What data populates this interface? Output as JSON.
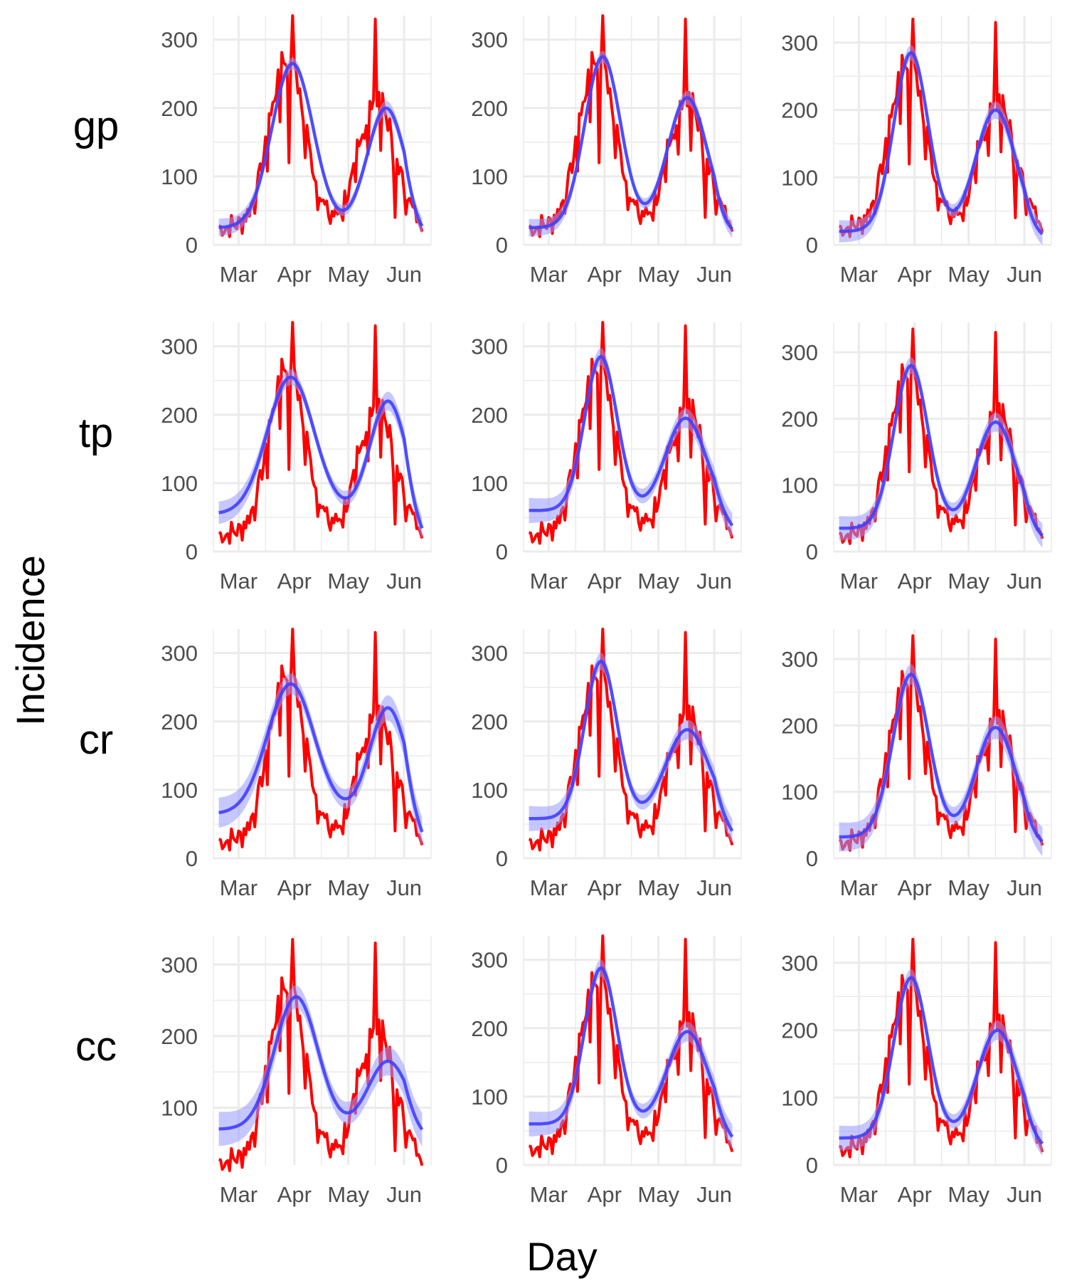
{
  "chart_data": {
    "type": "line",
    "facet_layout": {
      "rows": 4,
      "cols": 3
    },
    "xlabel": "Day",
    "ylabel": "Incidence",
    "row_labels": [
      "gp",
      "tp",
      "cr",
      "cc"
    ],
    "x_ticks": [
      "Mar",
      "Apr",
      "May",
      "Jun"
    ],
    "x_tick_days": [
      3,
      34,
      64,
      95
    ],
    "xlim": [
      -11,
      110
    ],
    "grid": true,
    "colors": {
      "observed": "#ff0000",
      "fit": "#3f3fff",
      "band": "#9999ff",
      "grid": "#ebebeb"
    },
    "observed": {
      "peak1": {
        "center": 30,
        "width": 10,
        "height": 245
      },
      "peak2": {
        "center": 80,
        "width": 10,
        "height": 185
      },
      "base": 25,
      "spikes": [
        {
          "day": 33,
          "value": 335
        },
        {
          "day": 79,
          "value": 330
        }
      ],
      "weekday_dips": [
        {
          "day": 31,
          "value": 120
        },
        {
          "day": 90,
          "value": 40
        }
      ]
    },
    "panels": [
      {
        "row": "gp",
        "col": 1,
        "ylim": [
          0,
          335
        ],
        "yticks": [
          0,
          100,
          200,
          300
        ],
        "fit": {
          "base": 25,
          "peaks": [
            {
              "center": 33,
              "width": 11.5,
              "height": 240
            },
            {
              "center": 85,
              "width": 10.5,
              "height": 175
            }
          ],
          "tail_end": 10,
          "band": 7
        }
      },
      {
        "row": "gp",
        "col": 2,
        "ylim": [
          0,
          335
        ],
        "yticks": [
          0,
          100,
          200,
          300
        ],
        "fit": {
          "base": 25,
          "peaks": [
            {
              "center": 33,
              "width": 10,
              "height": 250
            },
            {
              "center": 80,
              "width": 11,
              "height": 190
            }
          ],
          "tail_end": 12,
          "band": 7
        }
      },
      {
        "row": "gp",
        "col": 3,
        "ylim": [
          0,
          340
        ],
        "yticks": [
          0,
          100,
          200,
          300
        ],
        "fit": {
          "base": 20,
          "peaks": [
            {
              "center": 32,
              "width": 9.5,
              "height": 265
            },
            {
              "center": 79,
              "width": 11,
              "height": 180
            }
          ],
          "tail_end": 6,
          "band": 9
        }
      },
      {
        "row": "tp",
        "col": 1,
        "ylim": [
          0,
          335
        ],
        "yticks": [
          0,
          100,
          200,
          300
        ],
        "fit": {
          "base": 55,
          "peaks": [
            {
              "center": 32,
              "width": 13,
              "height": 200
            },
            {
              "center": 86,
              "width": 10,
              "height": 165
            }
          ],
          "tail_end": 2,
          "band": 9
        }
      },
      {
        "row": "tp",
        "col": 2,
        "ylim": [
          0,
          335
        ],
        "yticks": [
          0,
          100,
          200,
          300
        ],
        "fit": {
          "base": 60,
          "peaks": [
            {
              "center": 32,
              "width": 9,
              "height": 225
            },
            {
              "center": 79,
              "width": 11,
              "height": 135
            }
          ],
          "tail_end": 18,
          "band": 10
        }
      },
      {
        "row": "tp",
        "col": 3,
        "ylim": [
          0,
          345
        ],
        "yticks": [
          0,
          100,
          200,
          300
        ],
        "fit": {
          "base": 35,
          "peaks": [
            {
              "center": 32,
              "width": 9.5,
              "height": 245
            },
            {
              "center": 79,
              "width": 11,
              "height": 160
            }
          ],
          "tail_end": 10,
          "band": 10
        }
      },
      {
        "row": "cr",
        "col": 1,
        "ylim": [
          0,
          335
        ],
        "yticks": [
          0,
          100,
          200,
          300
        ],
        "fit": {
          "base": 65,
          "peaks": [
            {
              "center": 32,
              "width": 13,
              "height": 190
            },
            {
              "center": 86,
              "width": 10,
              "height": 155
            }
          ],
          "tail_end": 4,
          "band": 12
        }
      },
      {
        "row": "cr",
        "col": 2,
        "ylim": [
          0,
          335
        ],
        "yticks": [
          0,
          100,
          200,
          300
        ],
        "fit": {
          "base": 58,
          "peaks": [
            {
              "center": 32,
              "width": 9,
              "height": 230
            },
            {
              "center": 80,
              "width": 12,
              "height": 130
            }
          ],
          "tail_end": 18,
          "band": 10
        }
      },
      {
        "row": "cr",
        "col": 3,
        "ylim": [
          0,
          345
        ],
        "yticks": [
          0,
          100,
          200,
          300
        ],
        "fit": {
          "base": 32,
          "peaks": [
            {
              "center": 32,
              "width": 10,
              "height": 245
            },
            {
              "center": 79,
              "width": 11,
              "height": 165
            }
          ],
          "tail_end": 14,
          "band": 12
        }
      },
      {
        "row": "cc",
        "col": 1,
        "ylim": [
          20,
          340
        ],
        "yticks": [
          100,
          200,
          300
        ],
        "fit": {
          "base": 70,
          "peaks": [
            {
              "center": 35,
              "width": 12,
              "height": 185
            },
            {
              "center": 86,
              "width": 11,
              "height": 95
            }
          ],
          "tail_end": 55,
          "band": 13
        }
      },
      {
        "row": "cc",
        "col": 2,
        "ylim": [
          0,
          335
        ],
        "yticks": [
          0,
          100,
          200,
          300
        ],
        "fit": {
          "base": 60,
          "peaks": [
            {
              "center": 32,
              "width": 9,
              "height": 228
            },
            {
              "center": 80,
              "width": 11,
              "height": 135
            }
          ],
          "tail_end": 22,
          "band": 10
        }
      },
      {
        "row": "cc",
        "col": 3,
        "ylim": [
          0,
          340
        ],
        "yticks": [
          0,
          100,
          200,
          300
        ],
        "fit": {
          "base": 40,
          "peaks": [
            {
              "center": 32,
              "width": 9.5,
              "height": 238
            },
            {
              "center": 80,
              "width": 11,
              "height": 160
            }
          ],
          "tail_end": 18,
          "band": 10
        }
      }
    ]
  }
}
